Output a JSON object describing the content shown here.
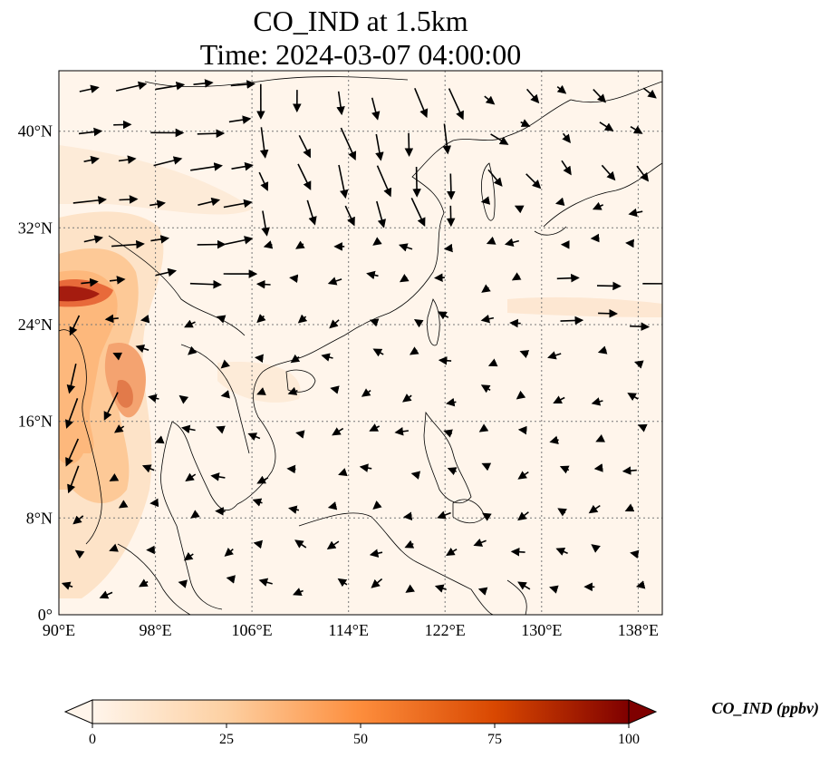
{
  "title": {
    "line1": "CO_IND at 1.5km",
    "line2": "Time: 2024-03-07 04:00:00"
  },
  "map": {
    "lon_range": [
      90,
      140
    ],
    "lat_range": [
      0,
      45
    ],
    "gridlines": true,
    "lon_ticks": [
      "90°E",
      "98°E",
      "106°E",
      "114°E",
      "122°E",
      "130°E",
      "138°E"
    ],
    "lat_ticks": [
      "0°",
      "8°N",
      "16°N",
      "24°N",
      "32°N",
      "40°N"
    ],
    "field": "CO concentration (shaded) with wind vectors",
    "colormap": [
      "#fff5eb",
      "#fdd0a2",
      "#fd8d3c",
      "#d94801",
      "#7f2704"
    ]
  },
  "colorbar": {
    "min": 0,
    "max": 100,
    "ticks": [
      "0",
      "25",
      "50",
      "75",
      "100"
    ],
    "label": "CO_IND (ppbv)"
  }
}
